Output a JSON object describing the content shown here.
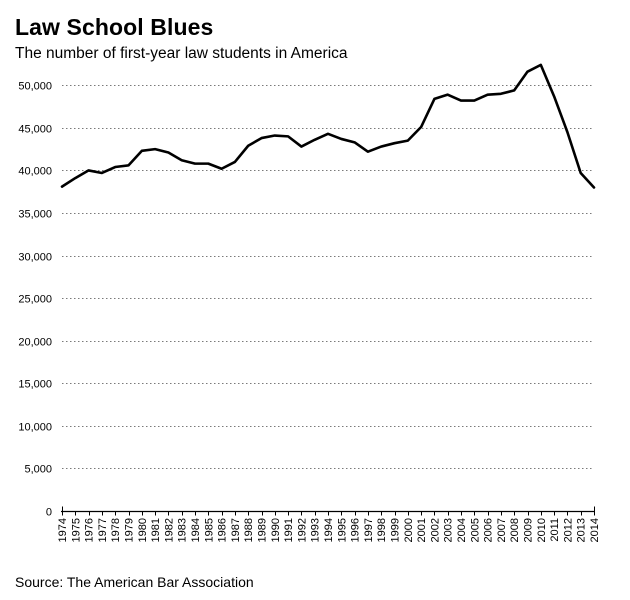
{
  "chart_data": {
    "type": "line",
    "title": "Law School Blues",
    "subtitle": "The number of first-year law students in America",
    "source": "Source: The American Bar Association",
    "xlabel": "",
    "ylabel": "",
    "ylim": [
      0,
      52500
    ],
    "yticks": [
      0,
      5000,
      10000,
      15000,
      20000,
      25000,
      30000,
      35000,
      40000,
      45000,
      50000
    ],
    "ytick_labels": [
      "0",
      "5,000",
      "10,000",
      "15,000",
      "20,000",
      "25,000",
      "30,000",
      "35,000",
      "40,000",
      "45,000",
      "50,000"
    ],
    "grid": true,
    "x": [
      1974,
      1975,
      1976,
      1977,
      1978,
      1979,
      1980,
      1981,
      1982,
      1983,
      1984,
      1985,
      1986,
      1987,
      1988,
      1989,
      1990,
      1991,
      1992,
      1993,
      1994,
      1995,
      1996,
      1997,
      1998,
      1999,
      2000,
      2001,
      2002,
      2003,
      2004,
      2005,
      2006,
      2007,
      2008,
      2009,
      2010,
      2011,
      2012,
      2013,
      2014
    ],
    "xtick_labels": [
      "1974",
      "1975",
      "1976",
      "1977",
      "1978",
      "1979",
      "1980",
      "1981",
      "1982",
      "1983",
      "1984",
      "1985",
      "1986",
      "1987",
      "1988",
      "1989",
      "1990",
      "1991",
      "1992",
      "1993",
      "1994",
      "1995",
      "1996",
      "1997",
      "1998",
      "1999",
      "2000",
      "2001",
      "2002",
      "2003",
      "2004",
      "2005",
      "2006",
      "2007",
      "2008",
      "2009",
      "2010",
      "2011",
      "2012",
      "2013",
      "2014"
    ],
    "series": [
      {
        "name": "First-year law students",
        "color": "#000000",
        "values": [
          38100,
          39100,
          40000,
          39700,
          40400,
          40600,
          42300,
          42500,
          42100,
          41200,
          40800,
          40800,
          40200,
          41000,
          42900,
          43800,
          44100,
          44000,
          42800,
          43600,
          44300,
          43700,
          43300,
          42200,
          42800,
          43200,
          43500,
          45100,
          48400,
          48900,
          48200,
          48200,
          48900,
          49000,
          49400,
          51600,
          52400,
          48700,
          44500,
          39700,
          38000
        ]
      }
    ]
  }
}
